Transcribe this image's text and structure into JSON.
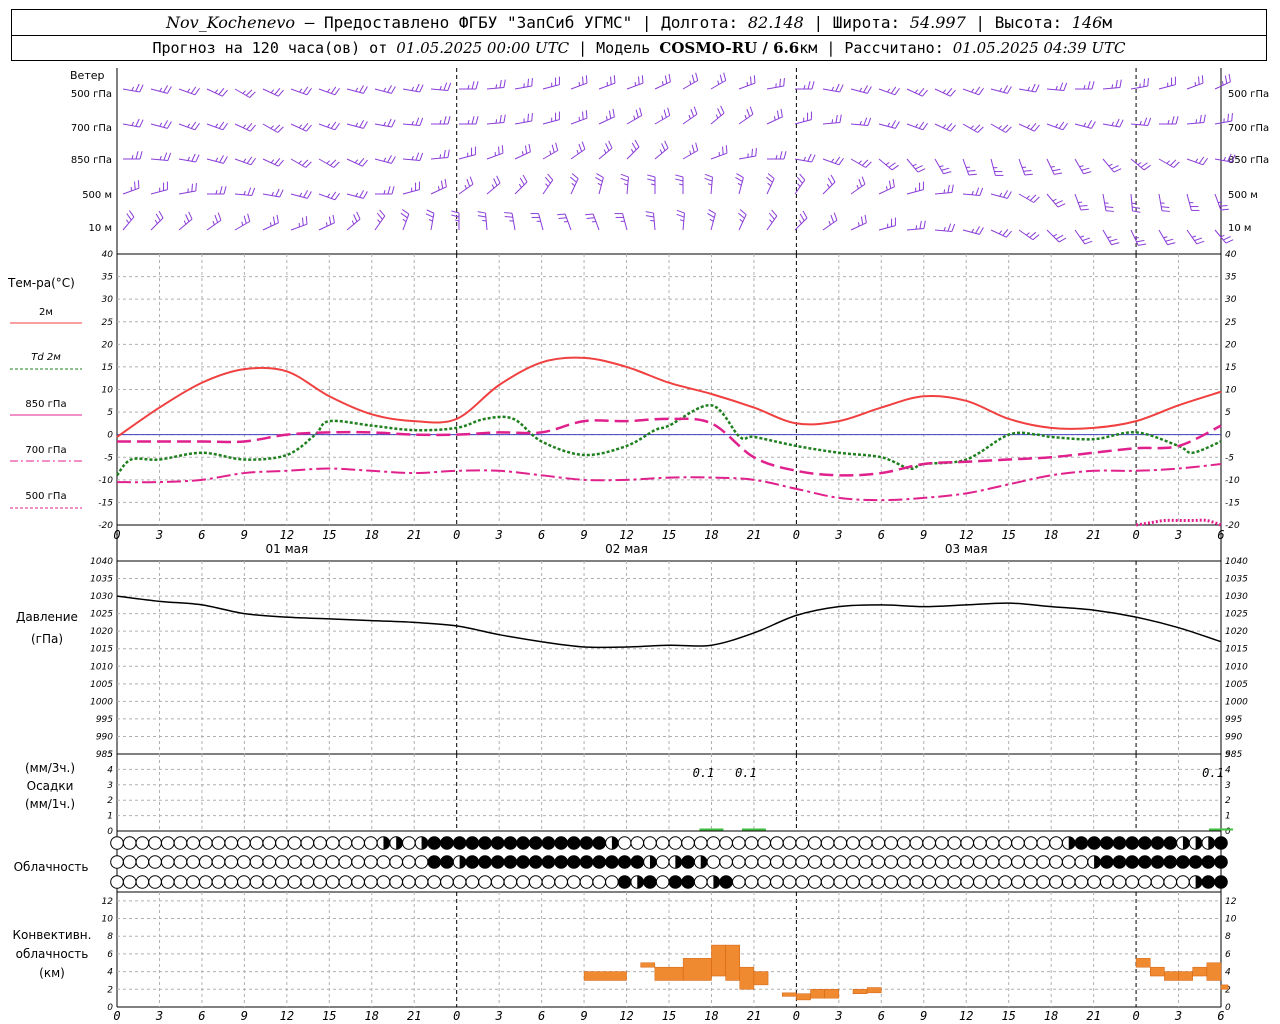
{
  "header": {
    "station": "Nov_Kochenevo",
    "provider": "– Предоставлено ФГБУ \"ЗапСиб УГМС\" | Долгота:",
    "lon": "82.148",
    "lat_label": "| Широта:",
    "lat": "54.997",
    "alt_label": "| Высота:",
    "alt": "146",
    "alt_unit": "м",
    "forecast_label": "Прогноз на 120 часа(ов) от",
    "forecast_start": "01.05.2025 00:00 UTC",
    "model_label": "| Модель",
    "model": "COSMO-RU / 6.6",
    "model_unit": "км",
    "calc_label": "| Рассчитано:",
    "calc_time": "01.05.2025 04:39 UTC"
  },
  "labels": {
    "wind": "Ветер",
    "wind_levels": [
      "500 гПа",
      "700 гПа",
      "850 гПа",
      "500 м",
      "10  м"
    ],
    "temp": "Тем-ра(°C)",
    "temp_legend": [
      "2м",
      "Td  2м",
      "850 гПа",
      "700 гПа",
      "500 гПа"
    ],
    "pressure": [
      "Давление",
      "(гПа)"
    ],
    "precip": [
      "(мм/3ч.)",
      "Осадки",
      "(мм/1ч.)"
    ],
    "cloud": "Облачность",
    "conv": [
      "Конвективн.",
      "облачность",
      "(км)"
    ]
  },
  "colors": {
    "t2m": "#f04040",
    "td2m": "#208020",
    "t850": "#e0208c",
    "t700": "#e0208c",
    "t500": "#e0208c",
    "pressure": "#000000",
    "precip": "#40c040",
    "conv": "#f08a30",
    "wind": "#8a3cd8",
    "zero_line": "#4040c0"
  },
  "chart_data": [
    {
      "type": "line",
      "panel": "temperature",
      "x_ticks": [
        "0",
        "3",
        "6",
        "9",
        "12",
        "15",
        "18",
        "21",
        "0",
        "3",
        "6",
        "9",
        "12",
        "15",
        "18",
        "21",
        "0",
        "3",
        "6",
        "9",
        "12",
        "15",
        "18",
        "21",
        "0",
        "3",
        "6"
      ],
      "dates": [
        "01 мая",
        "02 мая",
        "03 мая"
      ],
      "ylim": [
        -20,
        40
      ],
      "yticks": [
        -20,
        -15,
        -10,
        -5,
        0,
        5,
        10,
        15,
        20,
        25,
        30,
        35,
        40
      ],
      "series": [
        {
          "name": "2м",
          "x": [
            0,
            3,
            6,
            9,
            12,
            15,
            18,
            21,
            24,
            27,
            30,
            33,
            36,
            39,
            42,
            45,
            48,
            51,
            54,
            57,
            60,
            63,
            66,
            69,
            72,
            75,
            78
          ],
          "y": [
            -0.5,
            6,
            11.5,
            14.5,
            14,
            8.5,
            4.5,
            3,
            3.5,
            11,
            16,
            17,
            15,
            11.5,
            9,
            6,
            2.5,
            3,
            6,
            8.5,
            7.5,
            3.5,
            1.5,
            1.5,
            3,
            6.5,
            9.5
          ]
        },
        {
          "name": "Td  2м",
          "x": [
            0,
            1,
            3,
            6,
            9,
            12,
            14,
            15,
            18,
            21,
            24,
            26,
            28,
            30,
            33,
            36,
            38,
            39,
            42,
            44,
            45,
            48,
            51,
            54,
            56,
            57,
            60,
            63,
            65,
            66,
            69,
            72,
            75,
            76,
            78
          ],
          "y": [
            -9,
            -5.5,
            -5.5,
            -4,
            -5.5,
            -4.5,
            0,
            3,
            2,
            1,
            1.5,
            3.5,
            3.5,
            -1.5,
            -4.5,
            -2.5,
            1,
            2,
            6.5,
            -0.5,
            -0.5,
            -2.5,
            -4,
            -5,
            -7.5,
            -6.5,
            -5.5,
            0,
            0,
            -0.5,
            -1,
            0.5,
            -2.5,
            -4,
            -1.5
          ]
        },
        {
          "name": "850 гПа",
          "x": [
            0,
            3,
            6,
            9,
            12,
            15,
            18,
            21,
            24,
            27,
            30,
            33,
            36,
            39,
            42,
            45,
            48,
            51,
            54,
            57,
            60,
            63,
            66,
            69,
            72,
            75,
            78
          ],
          "y": [
            -1.5,
            -1.5,
            -1.5,
            -1.5,
            0,
            0.5,
            0.5,
            0,
            0,
            0.5,
            0.5,
            3,
            3,
            3.5,
            2.5,
            -5,
            -8,
            -9,
            -8.5,
            -6.5,
            -6,
            -5.5,
            -5,
            -4,
            -3,
            -2.5,
            2
          ]
        },
        {
          "name": "700 гПа",
          "x": [
            0,
            3,
            6,
            9,
            12,
            15,
            18,
            21,
            24,
            27,
            30,
            33,
            36,
            39,
            42,
            45,
            48,
            51,
            54,
            57,
            60,
            63,
            66,
            69,
            72,
            75,
            78
          ],
          "y": [
            -10.5,
            -10.5,
            -10,
            -8.5,
            -8,
            -7.5,
            -8,
            -8.5,
            -8,
            -8,
            -9,
            -10,
            -10,
            -9.5,
            -9.5,
            -10,
            -12,
            -14,
            -14.5,
            -14,
            -13,
            -11,
            -9,
            -8,
            -8,
            -7.5,
            -6.5
          ]
        },
        {
          "name": "500 гПа",
          "x": [
            72,
            73,
            74,
            75,
            76,
            77,
            78
          ],
          "y": [
            -20,
            -19.5,
            -19,
            -19,
            -19,
            -19,
            -20
          ]
        }
      ]
    },
    {
      "type": "line",
      "panel": "pressure",
      "ylim": [
        985,
        1040
      ],
      "yticks": [
        985,
        990,
        995,
        1000,
        1005,
        1010,
        1015,
        1020,
        1025,
        1030,
        1035,
        1040
      ],
      "series": [
        {
          "name": "",
          "x": [
            0,
            3,
            6,
            9,
            12,
            15,
            18,
            21,
            24,
            27,
            30,
            33,
            36,
            39,
            42,
            45,
            48,
            51,
            54,
            57,
            60,
            63,
            66,
            69,
            72,
            75,
            78
          ],
          "y": [
            1030,
            1028.5,
            1027.5,
            1025,
            1024,
            1023.5,
            1023,
            1022.5,
            1021.5,
            1019,
            1017,
            1015.5,
            1015.5,
            1016,
            1016,
            1019.5,
            1024.5,
            1027,
            1027.5,
            1027,
            1027.5,
            1028,
            1027,
            1026,
            1024,
            1021,
            1017
          ]
        }
      ]
    },
    {
      "type": "bar",
      "panel": "precipitation",
      "ylim": [
        0,
        5
      ],
      "yticks": [
        0,
        1,
        2,
        3,
        4,
        5
      ],
      "values": [
        {
          "x": 42,
          "v": 0.1
        },
        {
          "x": 45,
          "v": 0.1
        },
        {
          "x": 78,
          "v": 0.1
        }
      ],
      "labels": [
        "0.1",
        "0.1",
        "0.1"
      ]
    },
    {
      "type": "bar",
      "panel": "convective_cloud",
      "ylim": [
        0,
        13
      ],
      "yticks": [
        0,
        2,
        4,
        6,
        8,
        10,
        12
      ],
      "segments": [
        [
          33,
          36,
          3,
          4
        ],
        [
          37,
          38,
          4.5,
          5
        ],
        [
          38,
          40,
          3,
          4.5
        ],
        [
          40,
          42,
          3,
          5.5
        ],
        [
          42,
          43,
          3.5,
          7
        ],
        [
          43,
          44,
          3,
          7
        ],
        [
          44,
          45,
          2,
          4.5
        ],
        [
          45,
          46,
          2.5,
          4
        ],
        [
          47,
          48,
          1.2,
          1.6
        ],
        [
          48,
          49,
          0.8,
          1.5
        ],
        [
          49,
          50,
          1,
          2
        ],
        [
          50,
          51,
          1,
          2
        ],
        [
          52,
          53,
          1.5,
          2
        ],
        [
          53,
          54,
          1.6,
          2.2
        ],
        [
          72,
          73,
          4.5,
          5.5
        ],
        [
          73,
          74,
          3.5,
          4.5
        ],
        [
          74,
          75,
          3,
          4
        ],
        [
          75,
          76,
          3,
          4
        ],
        [
          76,
          77,
          3.5,
          4.5
        ],
        [
          77,
          78,
          3,
          5
        ],
        [
          78,
          78.5,
          2,
          2.5
        ]
      ]
    }
  ],
  "cloud_rows": {
    "high": "0000000000000000000002202444444444444442000000000000000000000000000000000002444444442224",
    "mid": "0000000000000000000000000442444444444444442024200000000000000000000000000000024444444444",
    "low": "0000000000000000000000000000000000000000424044024000000000000000000000000000000000000244"
  },
  "wind_rows": [
    {
      "level": "500 гПа",
      "dir": [
        280,
        285,
        290,
        295,
        300,
        295,
        290,
        290,
        285,
        285,
        280,
        275,
        270,
        265,
        260,
        255,
        250,
        250,
        250,
        245,
        240,
        240,
        250,
        260,
        270,
        280,
        285,
        290,
        295,
        295,
        290,
        285,
        280,
        275,
        270,
        265,
        260,
        255,
        250,
        245
      ]
    },
    {
      "level": "700 гПа",
      "dir": [
        280,
        285,
        290,
        290,
        295,
        300,
        295,
        290,
        285,
        280,
        275,
        270,
        270,
        265,
        260,
        255,
        250,
        245,
        240,
        240,
        235,
        230,
        235,
        245,
        255,
        265,
        275,
        285,
        290,
        295,
        300,
        300,
        295,
        290,
        285,
        280,
        275,
        270,
        265,
        260
      ]
    },
    {
      "level": "850 гПа",
      "dir": [
        270,
        275,
        280,
        285,
        290,
        295,
        300,
        300,
        295,
        285,
        275,
        265,
        255,
        250,
        245,
        240,
        235,
        230,
        225,
        230,
        240,
        250,
        260,
        270,
        280,
        290,
        300,
        310,
        320,
        330,
        340,
        345,
        340,
        335,
        330,
        320,
        310,
        300,
        290,
        280
      ]
    },
    {
      "level": "500 м",
      "dir": [
        250,
        255,
        260,
        270,
        275,
        280,
        285,
        290,
        285,
        270,
        255,
        245,
        235,
        230,
        225,
        215,
        205,
        195,
        185,
        180,
        180,
        185,
        195,
        205,
        215,
        225,
        235,
        245,
        255,
        265,
        275,
        285,
        300,
        320,
        340,
        350,
        355,
        350,
        345,
        340
      ]
    },
    {
      "level": "10  м",
      "dir": [
        220,
        225,
        230,
        235,
        240,
        245,
        250,
        245,
        230,
        215,
        200,
        190,
        180,
        175,
        170,
        165,
        160,
        160,
        165,
        175,
        185,
        195,
        205,
        215,
        225,
        235,
        245,
        255,
        265,
        275,
        285,
        295,
        305,
        315,
        325,
        330,
        335,
        330,
        325,
        320
      ]
    }
  ]
}
